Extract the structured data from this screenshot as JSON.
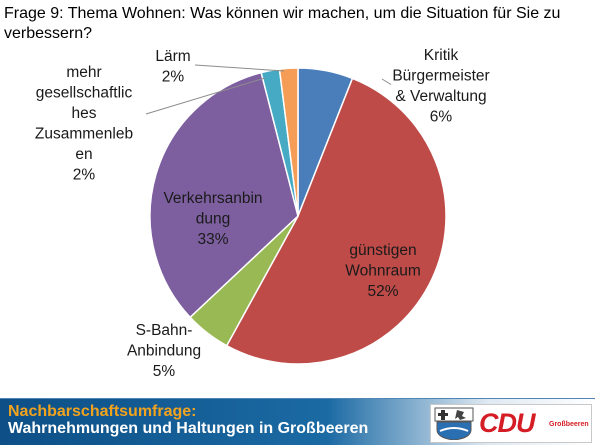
{
  "question": "Frage 9: Thema Wohnen: Was können wir machen, um die Situation für Sie zu verbessern?",
  "chart_data": {
    "type": "pie",
    "title": "",
    "slices": [
      {
        "label_lines": [
          "Kritik",
          "Bürgermeister",
          "& Verwaltung",
          "6%"
        ],
        "value": 6,
        "color": "#4a7ebb"
      },
      {
        "label_lines": [
          "günstigen",
          "Wohnraum",
          "52%"
        ],
        "value": 52,
        "color": "#be4b48"
      },
      {
        "label_lines": [
          "S-Bahn-",
          "Anbindung",
          "5%"
        ],
        "value": 5,
        "color": "#98b954"
      },
      {
        "label_lines": [
          "Verkehrsanbin",
          "dung",
          "33%"
        ],
        "value": 33,
        "color": "#7d5fa0"
      },
      {
        "label_lines": [
          "mehr",
          "gesellschaftlic",
          "hes",
          "Zusammenleb",
          "en",
          "2%"
        ],
        "value": 2,
        "color": "#46aac5"
      },
      {
        "label_lines": [
          "Lärm",
          "2%"
        ],
        "value": 2,
        "color": "#f59d56"
      }
    ]
  },
  "footer": {
    "title": "Nachbarschaftsumfrage:",
    "subtitle": "Wahrnehmungen und Haltungen in Großbeeren"
  },
  "logo": {
    "text": "CDU",
    "sub": "Großbeeren"
  }
}
